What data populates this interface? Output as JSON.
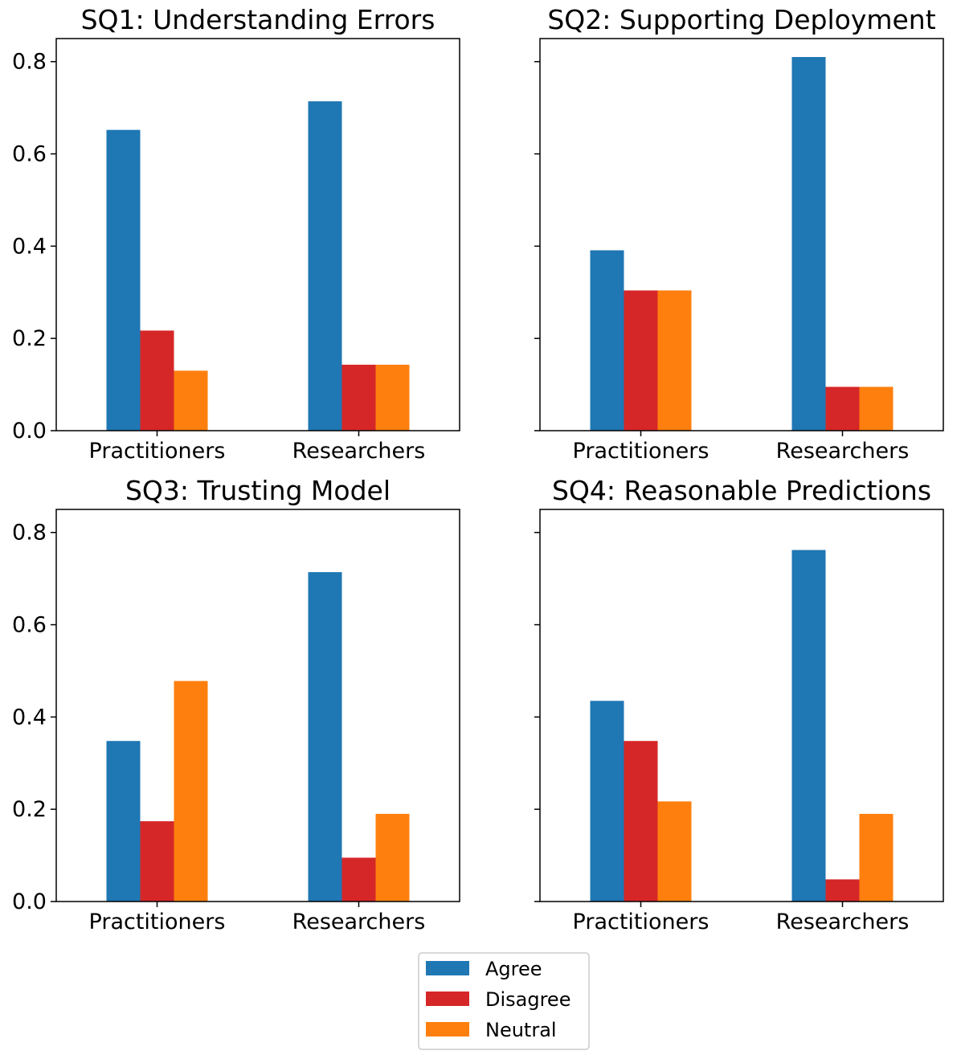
{
  "chart_data": [
    {
      "type": "bar",
      "title": "SQ1: Understanding Errors",
      "categories": [
        "Practitioners",
        "Researchers"
      ],
      "series": [
        {
          "name": "Agree",
          "values": [
            0.652,
            0.714
          ]
        },
        {
          "name": "Disagree",
          "values": [
            0.217,
            0.143
          ]
        },
        {
          "name": "Neutral",
          "values": [
            0.13,
            0.143
          ]
        }
      ],
      "ylim": [
        0,
        0.85
      ],
      "yticks": [
        "0.0",
        "0.2",
        "0.4",
        "0.6",
        "0.8"
      ],
      "show_ytick_labels": true,
      "grid": false
    },
    {
      "type": "bar",
      "title": "SQ2: Supporting Deployment",
      "categories": [
        "Practitioners",
        "Researchers"
      ],
      "series": [
        {
          "name": "Agree",
          "values": [
            0.391,
            0.81
          ]
        },
        {
          "name": "Disagree",
          "values": [
            0.304,
            0.095
          ]
        },
        {
          "name": "Neutral",
          "values": [
            0.304,
            0.095
          ]
        }
      ],
      "ylim": [
        0,
        0.85
      ],
      "yticks": [
        "0.0",
        "0.2",
        "0.4",
        "0.6",
        "0.8"
      ],
      "show_ytick_labels": false,
      "grid": false
    },
    {
      "type": "bar",
      "title": "SQ3: Trusting Model",
      "categories": [
        "Practitioners",
        "Researchers"
      ],
      "series": [
        {
          "name": "Agree",
          "values": [
            0.348,
            0.714
          ]
        },
        {
          "name": "Disagree",
          "values": [
            0.174,
            0.095
          ]
        },
        {
          "name": "Neutral",
          "values": [
            0.478,
            0.19
          ]
        }
      ],
      "ylim": [
        0,
        0.85
      ],
      "yticks": [
        "0.0",
        "0.2",
        "0.4",
        "0.6",
        "0.8"
      ],
      "show_ytick_labels": true,
      "grid": false
    },
    {
      "type": "bar",
      "title": "SQ4: Reasonable Predictions",
      "categories": [
        "Practitioners",
        "Researchers"
      ],
      "series": [
        {
          "name": "Agree",
          "values": [
            0.435,
            0.762
          ]
        },
        {
          "name": "Disagree",
          "values": [
            0.348,
            0.048
          ]
        },
        {
          "name": "Neutral",
          "values": [
            0.217,
            0.19
          ]
        }
      ],
      "ylim": [
        0,
        0.85
      ],
      "yticks": [
        "0.0",
        "0.2",
        "0.4",
        "0.6",
        "0.8"
      ],
      "show_ytick_labels": false,
      "grid": false
    }
  ],
  "legend": {
    "placement": "bottom-center",
    "entries": [
      {
        "label": "Agree",
        "color": "#1f77b4"
      },
      {
        "label": "Disagree",
        "color": "#d62728"
      },
      {
        "label": "Neutral",
        "color": "#ff7f0e"
      }
    ]
  },
  "colors": {
    "Agree": "#1f77b4",
    "Disagree": "#d62728",
    "Neutral": "#ff7f0e"
  }
}
